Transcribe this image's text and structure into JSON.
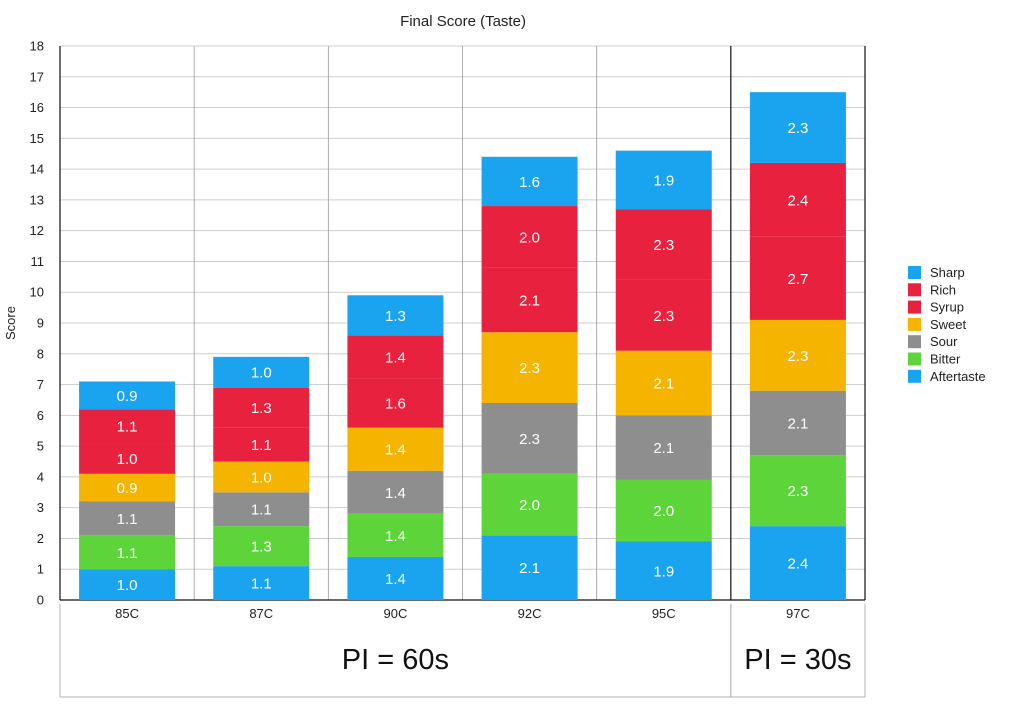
{
  "chart_data": {
    "type": "bar",
    "stacked": true,
    "title": "Final Score (Taste)",
    "xlabel": "",
    "ylabel": "Score",
    "ylim": [
      0,
      18
    ],
    "yticks": [
      0,
      1,
      2,
      3,
      4,
      5,
      6,
      7,
      8,
      9,
      10,
      11,
      12,
      13,
      14,
      15,
      16,
      17,
      18
    ],
    "grid": true,
    "legend_position": "right",
    "categories": [
      "85C",
      "87C",
      "90C",
      "92C",
      "95C",
      "97C"
    ],
    "series": [
      {
        "name": "Aftertaste",
        "color": "#1aa3ee",
        "values": [
          1.0,
          1.1,
          1.4,
          2.1,
          1.9,
          2.4
        ]
      },
      {
        "name": "Bitter",
        "color": "#5dd43a",
        "values": [
          1.1,
          1.3,
          1.4,
          2.0,
          2.0,
          2.3
        ]
      },
      {
        "name": "Sour",
        "color": "#8e8e8e",
        "values": [
          1.1,
          1.1,
          1.4,
          2.3,
          2.1,
          2.1
        ]
      },
      {
        "name": "Sweet",
        "color": "#f4b400",
        "values": [
          0.9,
          1.0,
          1.4,
          2.3,
          2.1,
          2.3
        ]
      },
      {
        "name": "Syrup",
        "color": "#e8213f",
        "values": [
          1.0,
          1.1,
          1.6,
          2.1,
          2.3,
          2.7
        ]
      },
      {
        "name": "Rich",
        "color": "#e8213f",
        "values": [
          1.1,
          1.3,
          1.4,
          2.0,
          2.3,
          2.4
        ]
      },
      {
        "name": "Sharp",
        "color": "#1aa3ee",
        "values": [
          0.9,
          1.0,
          1.3,
          1.6,
          1.9,
          2.3
        ]
      }
    ],
    "legend_order": [
      "Sharp",
      "Rich",
      "Syrup",
      "Sweet",
      "Sour",
      "Bitter",
      "Aftertaste"
    ],
    "groups": [
      {
        "label": "PI = 60s",
        "categories": [
          "85C",
          "87C",
          "90C",
          "92C",
          "95C"
        ]
      },
      {
        "label": "PI = 30s",
        "categories": [
          "97C"
        ]
      }
    ]
  }
}
